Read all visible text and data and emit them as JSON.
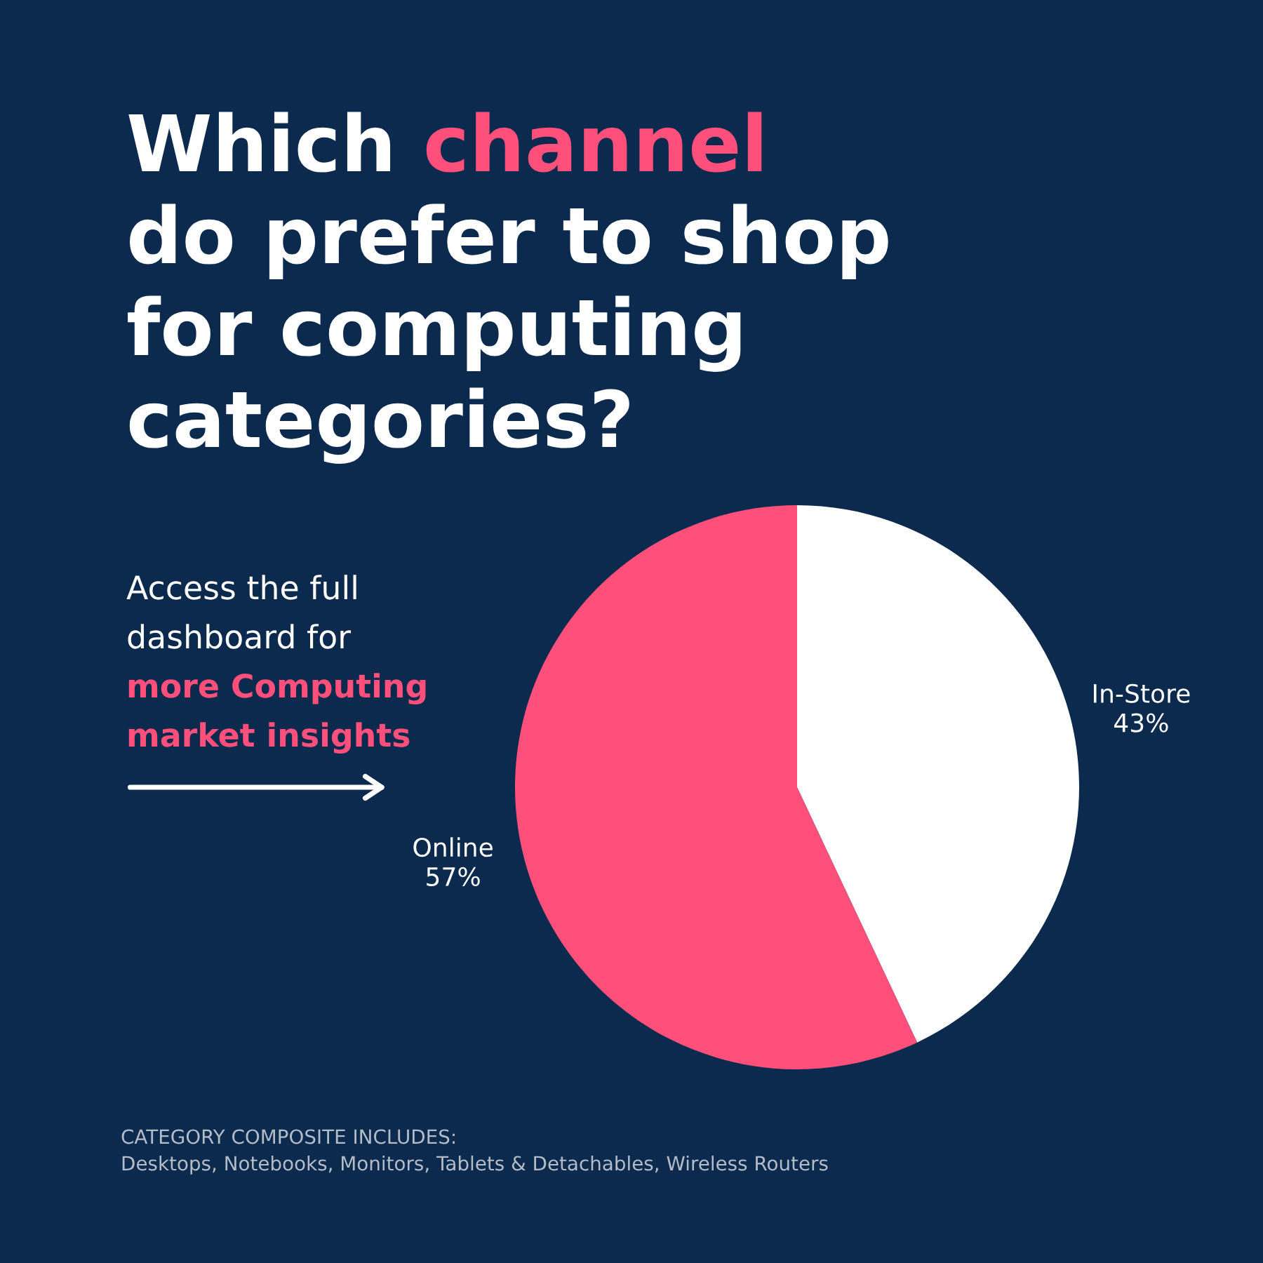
{
  "chart_data": {
    "type": "pie",
    "title": "Which channel\ndo prefer to shop\nfor computing\ncategories?",
    "categories": [
      "In-Store",
      "Online"
    ],
    "values": [
      43,
      57
    ],
    "colors": [
      "#ffffff",
      "#ff4f7b"
    ],
    "value_labels": [
      "43%",
      "57%"
    ],
    "annotations": [
      "Access the full\ndashboard for",
      "more Computing\nmarket insights",
      "CATEGORY COMPOSITE INCLUDES:\nDesktops, Notebooks, Monitors, Tablets & Detachables, Wireless Routers"
    ]
  }
}
